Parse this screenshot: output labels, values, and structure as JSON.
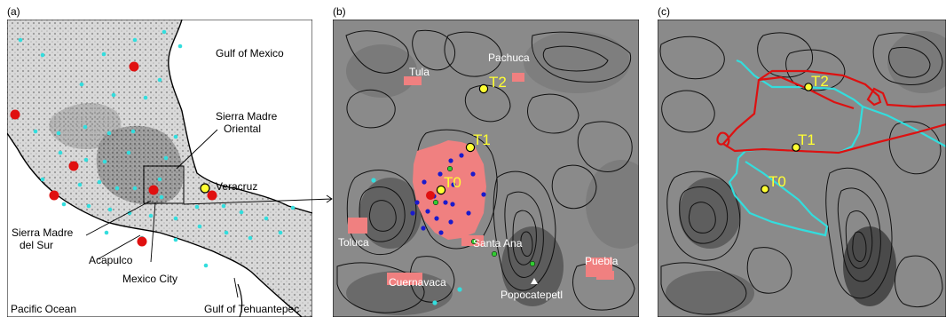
{
  "panels": {
    "a": {
      "label": "(a)",
      "places": {
        "gulf_mexico": "Gulf of Mexico",
        "sierra_oriental_1": "Sierra Madre",
        "sierra_oriental_2": "Oriental",
        "veracruz": "Veracruz",
        "sierra_sur_1": "Sierra Madre",
        "sierra_sur_2": "del Sur",
        "acapulco": "Acapulco",
        "mexico_city": "Mexico City",
        "pacific": "Pacific Ocean",
        "tehuantepec": "Gulf of Tehuantepec"
      }
    },
    "b": {
      "label": "(b)",
      "places": {
        "tula": "Tula",
        "pachuca": "Pachuca",
        "toluca": "Toluca",
        "santa_ana": "Santa Ana",
        "puebla": "Puebla",
        "cuernavaca": "Cuernavaca",
        "popocatepetl": "Popocatepetl"
      },
      "sites": {
        "t0": "T0",
        "t1": "T1",
        "t2": "T2"
      }
    },
    "c": {
      "label": "(c)",
      "sites": {
        "t0": "T0",
        "t1": "T1",
        "t2": "T2"
      }
    }
  },
  "colors": {
    "site_marker": "#ffff33",
    "site_label": "#ffff33",
    "red_station": "#e01010",
    "cyan_station": "#33dddd",
    "blue_station": "#1a1acc",
    "green_station": "#33cc33",
    "urban": "#f08080",
    "flight_red": "#dd1111",
    "flight_cyan": "#33dddd",
    "terrain_gray": "#8a8a8a"
  }
}
